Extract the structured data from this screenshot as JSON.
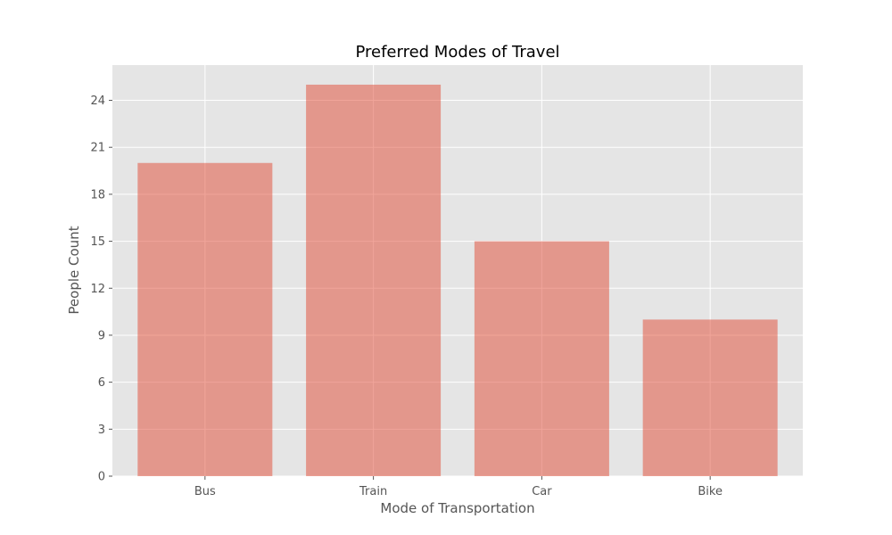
{
  "chart_data": {
    "type": "bar",
    "title": "Preferred Modes of Travel",
    "xlabel": "Mode of Transportation",
    "ylabel": "People Count",
    "categories": [
      "Bus",
      "Train",
      "Car",
      "Bike"
    ],
    "values": [
      20,
      25,
      15,
      10
    ],
    "ylim": [
      0,
      26.25
    ],
    "yticks": [
      0,
      3,
      6,
      9,
      12,
      15,
      18,
      21,
      24
    ],
    "grid": true,
    "legend": "none",
    "colors": {
      "bar": "#e24a33",
      "bar_opacity": 0.5,
      "plot_background": "#e5e5e5",
      "grid": "#ffffff",
      "text": "#555555",
      "title": "#000000"
    }
  }
}
